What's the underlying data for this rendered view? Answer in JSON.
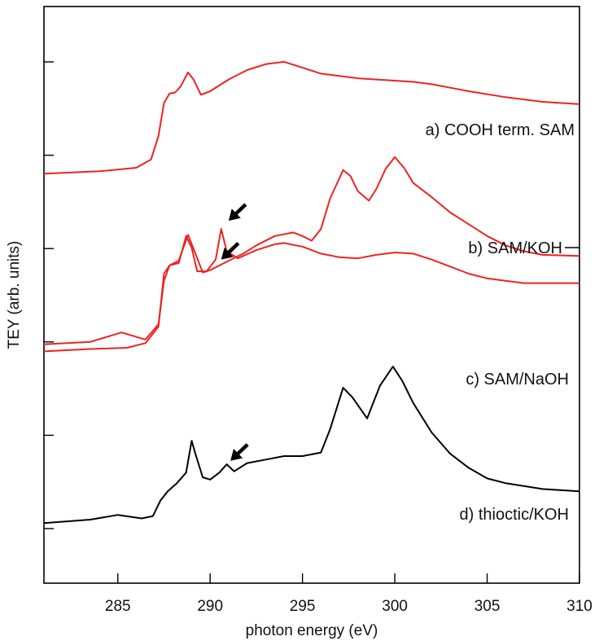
{
  "chart_data": {
    "type": "line",
    "xlabel": "photon energy (eV)",
    "ylabel": "TEY (arb. units)",
    "xlim": [
      281,
      310
    ],
    "x_ticks": [
      285,
      290,
      295,
      300,
      305,
      310
    ],
    "y_ticks_count": 6,
    "grid": false,
    "legend": "none",
    "series": [
      {
        "name": "a) COOH term. SAM",
        "color": "#ee2222",
        "points": [
          [
            281,
            0.88
          ],
          [
            284,
            0.9
          ],
          [
            286,
            0.93
          ],
          [
            286.8,
            1.0
          ],
          [
            287.2,
            1.2
          ],
          [
            287.5,
            1.48
          ],
          [
            287.8,
            1.56
          ],
          [
            288.1,
            1.57
          ],
          [
            288.4,
            1.62
          ],
          [
            288.8,
            1.74
          ],
          [
            289.1,
            1.68
          ],
          [
            289.5,
            1.55
          ],
          [
            290.0,
            1.58
          ],
          [
            291.0,
            1.68
          ],
          [
            292.0,
            1.76
          ],
          [
            293.0,
            1.81
          ],
          [
            294.0,
            1.83
          ],
          [
            295.0,
            1.78
          ],
          [
            296.0,
            1.73
          ],
          [
            297.0,
            1.71
          ],
          [
            298.0,
            1.69
          ],
          [
            299.0,
            1.68
          ],
          [
            300.0,
            1.67
          ],
          [
            301.0,
            1.66
          ],
          [
            302.0,
            1.64
          ],
          [
            303.0,
            1.61
          ],
          [
            304.0,
            1.58
          ],
          [
            306.0,
            1.53
          ],
          [
            308.0,
            1.49
          ],
          [
            310.0,
            1.47
          ]
        ]
      },
      {
        "name": "b) SAM/KOH",
        "color": "#ee2222",
        "points": [
          [
            281,
            -0.57
          ],
          [
            283.5,
            -0.55
          ],
          [
            285.2,
            -0.47
          ],
          [
            286.5,
            -0.53
          ],
          [
            287.2,
            -0.4
          ],
          [
            287.5,
            -0.03
          ],
          [
            287.8,
            0.1
          ],
          [
            288.3,
            0.14
          ],
          [
            288.8,
            0.36
          ],
          [
            289.2,
            0.2
          ],
          [
            289.6,
            0.04
          ],
          [
            290.0,
            0.06
          ],
          [
            290.5,
            0.1
          ],
          [
            291.0,
            0.14
          ],
          [
            291.8,
            0.2
          ],
          [
            292.5,
            0.27
          ],
          [
            293.5,
            0.35
          ],
          [
            294.5,
            0.38
          ],
          [
            295.0,
            0.35
          ],
          [
            295.5,
            0.31
          ],
          [
            296.0,
            0.41
          ],
          [
            296.5,
            0.67
          ],
          [
            297.2,
            0.91
          ],
          [
            297.6,
            0.86
          ],
          [
            298.0,
            0.73
          ],
          [
            298.6,
            0.65
          ],
          [
            299.0,
            0.75
          ],
          [
            299.5,
            0.92
          ],
          [
            300.0,
            1.02
          ],
          [
            300.5,
            0.93
          ],
          [
            301.0,
            0.8
          ],
          [
            302.0,
            0.68
          ],
          [
            303.0,
            0.55
          ],
          [
            304.0,
            0.45
          ],
          [
            305.0,
            0.35
          ],
          [
            306.0,
            0.27
          ],
          [
            307.0,
            0.22
          ],
          [
            308.0,
            0.19
          ],
          [
            310.0,
            0.18
          ]
        ]
      },
      {
        "name": "c) SAM/NaOH",
        "color": "#ee2222",
        "points": [
          [
            281,
            -0.63
          ],
          [
            283.5,
            -0.61
          ],
          [
            285.5,
            -0.6
          ],
          [
            286.5,
            -0.56
          ],
          [
            287.2,
            -0.42
          ],
          [
            287.5,
            0.03
          ],
          [
            287.8,
            0.1
          ],
          [
            288.3,
            0.12
          ],
          [
            288.7,
            0.35
          ],
          [
            289.0,
            0.25
          ],
          [
            289.3,
            0.05
          ],
          [
            289.8,
            0.05
          ],
          [
            290.3,
            0.15
          ],
          [
            290.6,
            0.41
          ],
          [
            290.9,
            0.22
          ],
          [
            291.5,
            0.16
          ],
          [
            292.5,
            0.23
          ],
          [
            293.5,
            0.28
          ],
          [
            294.0,
            0.29
          ],
          [
            295.0,
            0.26
          ],
          [
            296.0,
            0.2
          ],
          [
            297.0,
            0.17
          ],
          [
            298.0,
            0.16
          ],
          [
            299.0,
            0.19
          ],
          [
            300.0,
            0.21
          ],
          [
            301.0,
            0.2
          ],
          [
            302.0,
            0.15
          ],
          [
            303.0,
            0.09
          ],
          [
            304.0,
            0.03
          ],
          [
            305.0,
            -0.01
          ],
          [
            306.0,
            -0.03
          ],
          [
            307.0,
            -0.05
          ],
          [
            308.0,
            -0.05
          ],
          [
            310.0,
            -0.05
          ]
        ]
      },
      {
        "name": "d) thioctic/KOH",
        "color": "#000000",
        "points": [
          [
            281,
            -2.09
          ],
          [
            283.5,
            -2.06
          ],
          [
            285.0,
            -2.02
          ],
          [
            286.3,
            -2.05
          ],
          [
            286.9,
            -2.03
          ],
          [
            287.3,
            -1.9
          ],
          [
            287.7,
            -1.82
          ],
          [
            288.2,
            -1.75
          ],
          [
            288.7,
            -1.66
          ],
          [
            289.0,
            -1.39
          ],
          [
            289.2,
            -1.5
          ],
          [
            289.6,
            -1.7
          ],
          [
            290.0,
            -1.72
          ],
          [
            290.5,
            -1.66
          ],
          [
            290.9,
            -1.59
          ],
          [
            291.3,
            -1.65
          ],
          [
            292.0,
            -1.58
          ],
          [
            293.0,
            -1.55
          ],
          [
            294.0,
            -1.52
          ],
          [
            295.0,
            -1.52
          ],
          [
            296.0,
            -1.49
          ],
          [
            296.5,
            -1.29
          ],
          [
            297.2,
            -0.94
          ],
          [
            297.7,
            -1.02
          ],
          [
            298.5,
            -1.2
          ],
          [
            299.2,
            -0.92
          ],
          [
            299.9,
            -0.76
          ],
          [
            300.4,
            -0.88
          ],
          [
            301.0,
            -1.07
          ],
          [
            302.0,
            -1.32
          ],
          [
            303.0,
            -1.5
          ],
          [
            304.0,
            -1.62
          ],
          [
            305.0,
            -1.71
          ],
          [
            306.0,
            -1.75
          ],
          [
            308.0,
            -1.8
          ],
          [
            310.0,
            -1.82
          ]
        ]
      }
    ],
    "annotations": [
      {
        "type": "arrow",
        "x": 290.6,
        "y": 0.15,
        "series": "b) SAM/KOH"
      },
      {
        "type": "arrow",
        "x": 291.0,
        "y": 0.48,
        "series": "c) SAM/NaOH"
      },
      {
        "type": "arrow",
        "x": 291.1,
        "y": -1.56,
        "series": "d) thioctic/KOH"
      }
    ]
  }
}
